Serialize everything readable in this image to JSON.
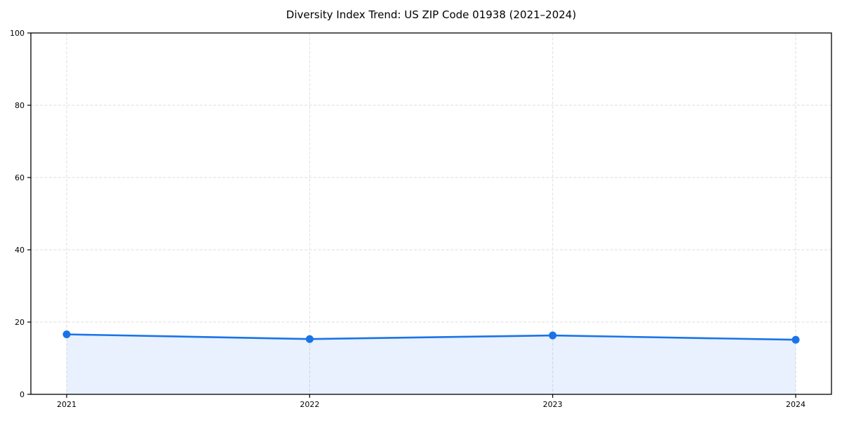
{
  "chart_data": {
    "type": "line",
    "title": "Diversity Index Trend: US ZIP Code 01938 (2021–2024)",
    "x": [
      2021,
      2022,
      2023,
      2024
    ],
    "xtick_labels": [
      "2021",
      "2022",
      "2023",
      "2024"
    ],
    "values": [
      16.6,
      15.3,
      16.3,
      15.1
    ],
    "xlabel": "",
    "ylabel": "",
    "ylim": [
      0,
      100
    ],
    "yticks": [
      0,
      20,
      40,
      60,
      80,
      100
    ],
    "grid": true,
    "grid_style": "dashed",
    "legend": "none",
    "marker": "circle",
    "area_fill": true,
    "colors": {
      "line": "#1a73e8",
      "marker": "#1a73e8",
      "area_fill": "rgba(26,115,232,0.10)",
      "grid": "#dedede",
      "axis": "#000000",
      "text": "#000000",
      "background": "#ffffff"
    }
  }
}
